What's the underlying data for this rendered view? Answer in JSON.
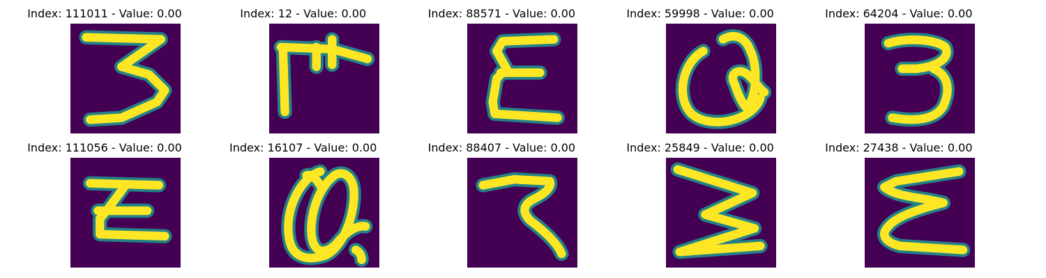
{
  "colors": {
    "background": "#440154",
    "edge": "#21908d",
    "stroke": "#fde725"
  },
  "panels": [
    {
      "title": "Index: 111011 - Value: 0.00",
      "glyph": "digit-3-flat-top-icon"
    },
    {
      "title": "Index: 12 - Value: 0.00",
      "glyph": "cross-glyph-icon"
    },
    {
      "title": "Index: 88571 - Value: 0.00",
      "glyph": "epsilon-glyph-icon"
    },
    {
      "title": "Index: 59998 - Value: 0.00",
      "glyph": "at-sign-glyph-icon"
    },
    {
      "title": "Index: 64204 - Value: 0.00",
      "glyph": "digit-3-glyph-icon"
    },
    {
      "title": "Index: 111056 - Value: 0.00",
      "glyph": "z-bar-glyph-icon"
    },
    {
      "title": "Index: 16107 - Value: 0.00",
      "glyph": "at-sign-glyph-icon"
    },
    {
      "title": "Index: 88407 - Value: 0.00",
      "glyph": "hook-glyph-icon"
    },
    {
      "title": "Index: 25849 - Value: 0.00",
      "glyph": "digit-3-zigzag-icon"
    },
    {
      "title": "Index: 27438 - Value: 0.00",
      "glyph": "epsilon-glyph-icon"
    }
  ]
}
